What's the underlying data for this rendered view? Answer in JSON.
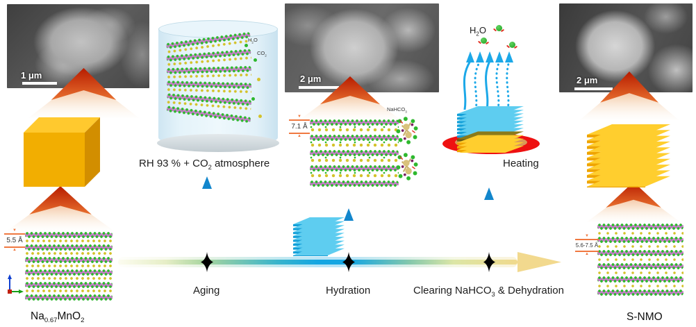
{
  "panels": {
    "sem_left": {
      "scale": "1 μm"
    },
    "sem_middle": {
      "scale": "2 μm"
    },
    "sem_right": {
      "scale": "2 μm"
    }
  },
  "start_material": {
    "spacing": "5.5 Å",
    "formula": {
      "p1": "Na",
      "s1": "0.67",
      "p2": "MnO",
      "s2": "2"
    }
  },
  "aging_stage": {
    "atmosphere": {
      "pre": "RH 93 % + CO",
      "sub": "2",
      "post": " atmosphere"
    },
    "h2o": {
      "pre": "H",
      "sub": "2",
      "post": "O"
    },
    "co2": {
      "pre": "CO",
      "sub": "2"
    },
    "label": "Aging"
  },
  "hydration_stage": {
    "spacing": "7.1 Å",
    "nahco3": {
      "pre": "NaHCO",
      "sub": "3"
    },
    "label": "Hydration"
  },
  "dehydration_stage": {
    "h2o": {
      "pre": "H",
      "sub": "2",
      "post": "O"
    },
    "heating_label": "Heating",
    "label": {
      "pre": "Clearing NaHCO",
      "sub": "3",
      "post": " & Dehydration"
    }
  },
  "product_material": {
    "spacing": "5.6-7.5 Å",
    "name": "S-NMO"
  },
  "colors": {
    "mno2_layer": "#cf8bd0",
    "sodium": "#d4c22a",
    "oxygen_green": "#2eb82e",
    "timeline_blue": "#14a6e2",
    "plate_yellow": "#f5ae00",
    "plate_blue": "#1fa8dc",
    "beam_red": "#bb2000",
    "dish_red": "#ee1111",
    "measure_orange": "#f07840"
  }
}
